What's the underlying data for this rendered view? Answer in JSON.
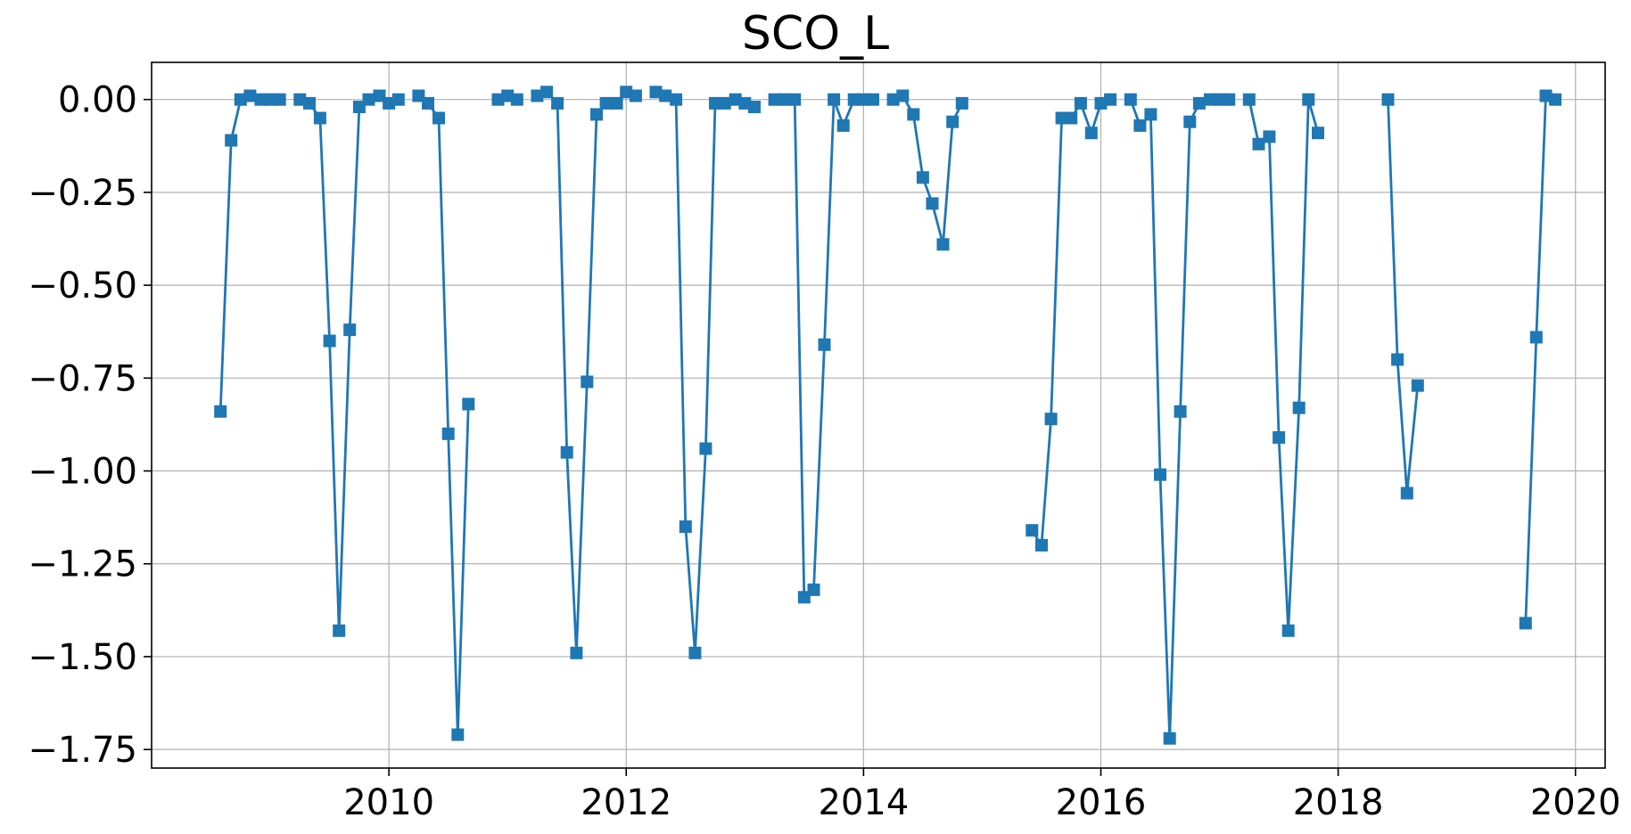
{
  "chart_data": {
    "type": "line",
    "title": "SCO_L",
    "xlabel": "",
    "ylabel": "",
    "xlim": [
      2008.0,
      2020.25
    ],
    "ylim": [
      -1.8,
      0.1
    ],
    "x_ticks": [
      2010,
      2012,
      2014,
      2016,
      2018,
      2020
    ],
    "x_tick_labels": [
      "2010",
      "2012",
      "2014",
      "2016",
      "2018",
      "2020"
    ],
    "y_ticks": [
      0.0,
      -0.25,
      -0.5,
      -0.75,
      -1.0,
      -1.25,
      -1.5,
      -1.75
    ],
    "y_tick_labels": [
      "0.00",
      "−0.25",
      "−0.50",
      "−0.75",
      "−1.00",
      "−1.25",
      "−1.50",
      "−1.75"
    ],
    "grid": true,
    "marker": "square",
    "color": "#1f77b4",
    "series": [
      {
        "segments": [
          {
            "x": [
              2008.58,
              2008.67,
              2008.75,
              2008.83,
              2008.92,
              2009.0,
              2009.08
            ],
            "y": [
              -0.84,
              -0.11,
              0.0,
              0.01,
              0.0,
              0.0,
              0.0
            ]
          },
          {
            "x": [
              2009.25,
              2009.33,
              2009.42,
              2009.5,
              2009.58,
              2009.67,
              2009.75,
              2009.83,
              2009.92,
              2010.0,
              2010.08
            ],
            "y": [
              0.0,
              -0.01,
              -0.05,
              -0.65,
              -1.43,
              -0.62,
              -0.02,
              0.0,
              0.01,
              -0.01,
              0.0
            ]
          },
          {
            "x": [
              2010.25,
              2010.33,
              2010.42,
              2010.5,
              2010.58,
              2010.67
            ],
            "y": [
              0.01,
              -0.01,
              -0.05,
              -0.9,
              -1.71,
              -0.82
            ]
          },
          {
            "x": [
              2010.92,
              2011.0,
              2011.08
            ],
            "y": [
              0.0,
              0.01,
              0.0
            ]
          },
          {
            "x": [
              2011.25,
              2011.33,
              2011.42,
              2011.5,
              2011.58,
              2011.67,
              2011.75,
              2011.83,
              2011.92,
              2012.0,
              2012.08
            ],
            "y": [
              0.01,
              0.02,
              -0.01,
              -0.95,
              -1.49,
              -0.76,
              -0.04,
              -0.01,
              -0.01,
              0.02,
              0.01
            ]
          },
          {
            "x": [
              2012.25,
              2012.33,
              2012.42,
              2012.5,
              2012.58,
              2012.67,
              2012.75,
              2012.83,
              2012.92,
              2013.0,
              2013.08
            ],
            "y": [
              0.02,
              0.01,
              0.0,
              -1.15,
              -1.49,
              -0.94,
              -0.01,
              -0.01,
              0.0,
              -0.01,
              -0.02
            ]
          },
          {
            "x": [
              2013.25,
              2013.33,
              2013.42,
              2013.5,
              2013.58,
              2013.67,
              2013.75,
              2013.83,
              2013.92,
              2014.0,
              2014.08
            ],
            "y": [
              0.0,
              0.0,
              0.0,
              -1.34,
              -1.32,
              -0.66,
              0.0,
              -0.07,
              0.0,
              0.0,
              0.0
            ]
          },
          {
            "x": [
              2014.25,
              2014.33,
              2014.42,
              2014.5,
              2014.58,
              2014.67,
              2014.75,
              2014.83
            ],
            "y": [
              0.0,
              0.01,
              -0.04,
              -0.21,
              -0.28,
              -0.39,
              -0.06,
              -0.01
            ]
          },
          {
            "x": [
              2015.42,
              2015.5,
              2015.58,
              2015.67,
              2015.75,
              2015.83,
              2015.92,
              2016.0,
              2016.08
            ],
            "y": [
              -1.16,
              -1.2,
              -0.86,
              -0.05,
              -0.05,
              -0.01,
              -0.09,
              -0.01,
              0.0
            ]
          },
          {
            "x": [
              2016.25,
              2016.33,
              2016.42,
              2016.5,
              2016.58,
              2016.67,
              2016.75,
              2016.83,
              2016.92,
              2017.0,
              2017.08
            ],
            "y": [
              0.0,
              -0.07,
              -0.04,
              -1.01,
              -1.72,
              -0.84,
              -0.06,
              -0.01,
              0.0,
              0.0,
              0.0
            ]
          },
          {
            "x": [
              2017.25,
              2017.33,
              2017.42,
              2017.5,
              2017.58,
              2017.67,
              2017.75,
              2017.83
            ],
            "y": [
              0.0,
              -0.12,
              -0.1,
              -0.91,
              -1.43,
              -0.83,
              0.0,
              -0.09
            ]
          },
          {
            "x": [
              2018.42,
              2018.5,
              2018.58,
              2018.67
            ],
            "y": [
              0.0,
              -0.7,
              -1.06,
              -0.77
            ]
          },
          {
            "x": [
              2019.58,
              2019.67,
              2019.75,
              2019.83
            ],
            "y": [
              -1.41,
              -0.64,
              0.01,
              0.0
            ]
          }
        ]
      }
    ]
  }
}
